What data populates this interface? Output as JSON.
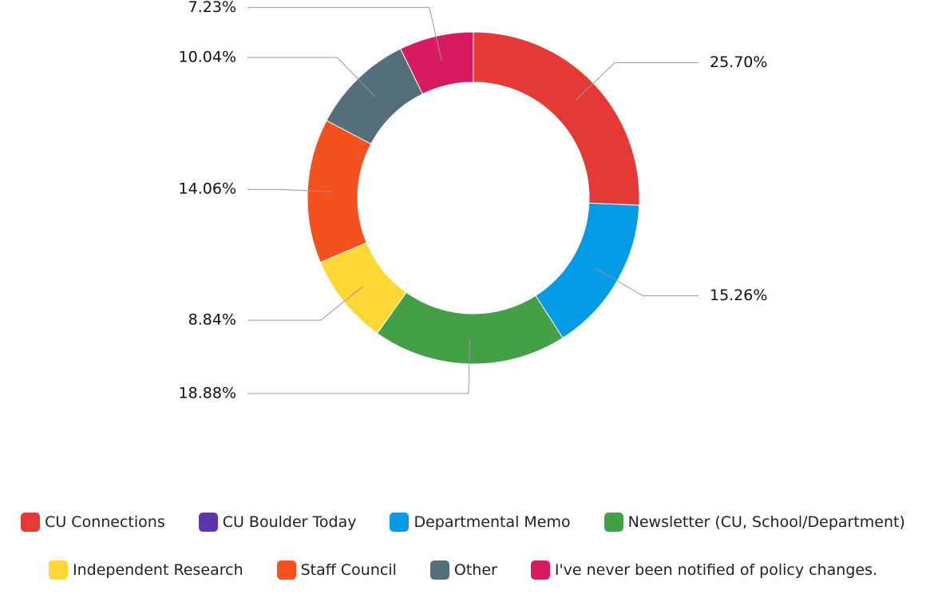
{
  "chart_data": {
    "type": "donut",
    "categories": [
      "CU Connections",
      "CU Boulder Today",
      "Departmental Memo",
      "Newsletter (CU, School/Department)",
      "Independent Research",
      "Staff Council",
      "Other",
      "I've never been notified of policy changes."
    ],
    "values": [
      25.7,
      0,
      15.26,
      18.88,
      8.84,
      14.06,
      10.04,
      7.23
    ],
    "value_labels": [
      "25.70%",
      null,
      "15.26%",
      "18.88%",
      "8.84%",
      "14.06%",
      "10.04%",
      "7.23%"
    ],
    "colors": [
      "#e53935",
      "#5e35b1",
      "#039be5",
      "#43a047",
      "#fdd835",
      "#f4511e",
      "#546e7a",
      "#d81b60"
    ]
  }
}
